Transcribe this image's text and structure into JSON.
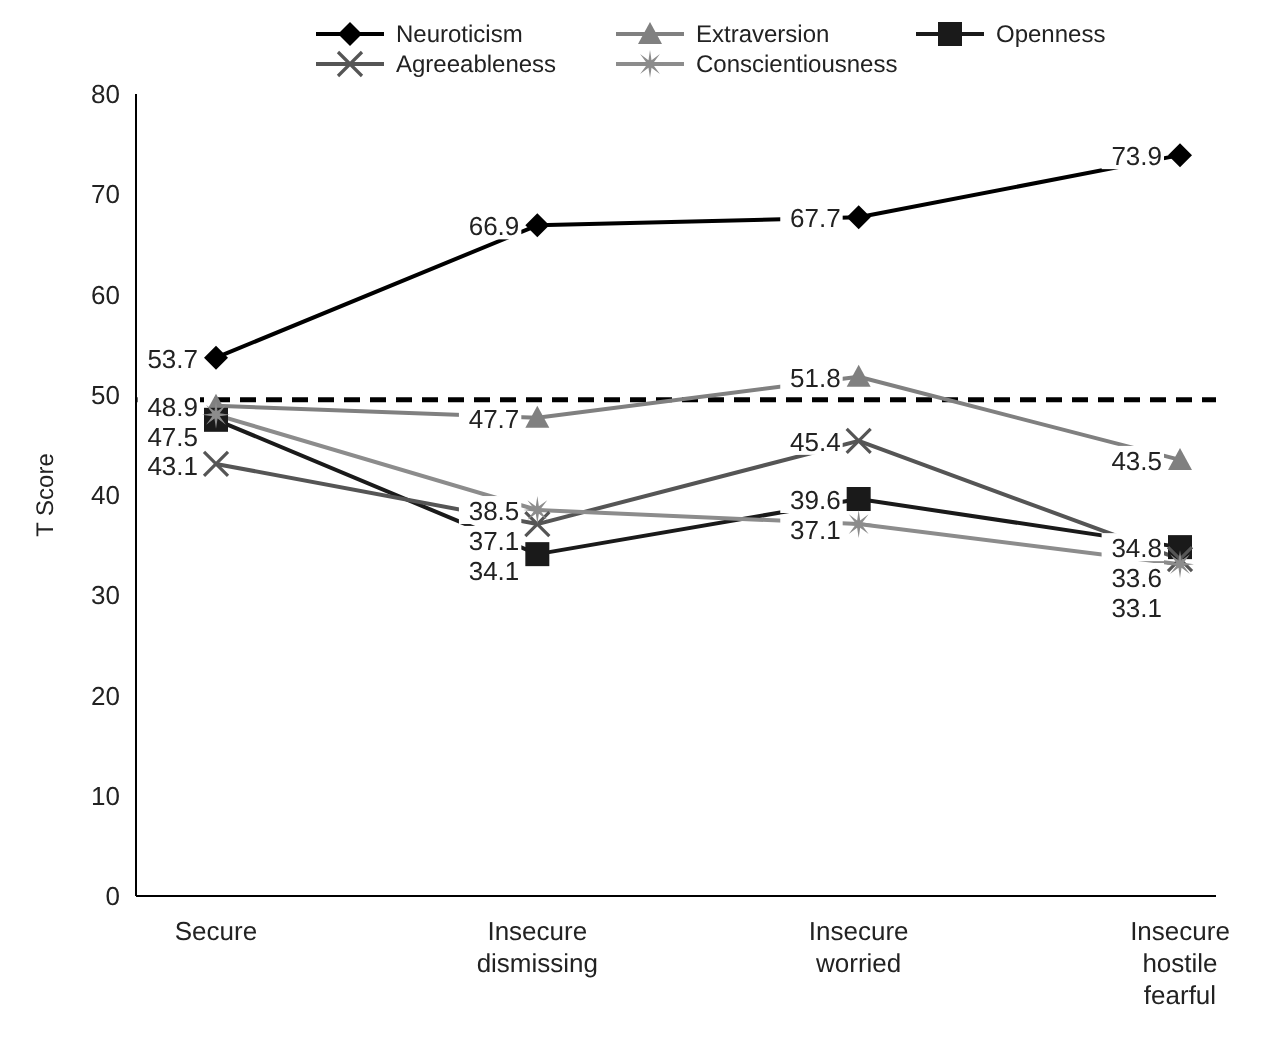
{
  "chart_data": {
    "type": "line",
    "ylabel": "T Score",
    "categories": [
      "Secure",
      "Insecure dismissing",
      "Insecure worried",
      "Insecure hostile fearful"
    ],
    "series": [
      {
        "name": "Neuroticism",
        "color": "#000000",
        "marker": "diamond",
        "values": [
          53.7,
          66.9,
          67.7,
          73.9
        ],
        "value_labels": [
          "53.7",
          "66.9",
          "67.7",
          "73.9"
        ]
      },
      {
        "name": "Extraversion",
        "color": "#808080",
        "marker": "triangle",
        "values": [
          48.9,
          47.7,
          51.8,
          43.5
        ],
        "value_labels": [
          "48.9",
          "47.7",
          "51.8",
          "43.5"
        ]
      },
      {
        "name": "Openness",
        "color": "#1a1a1a",
        "marker": "square",
        "values": [
          47.5,
          34.1,
          39.6,
          34.8
        ],
        "value_labels": [
          "47.5",
          "34.1",
          "39.6",
          "34.8"
        ]
      },
      {
        "name": "Agreeableness",
        "color": "#555555",
        "marker": "cross",
        "values": [
          43.1,
          37.1,
          45.4,
          33.6
        ],
        "value_labels": [
          "43.1",
          "37.1",
          "45.4",
          "33.6"
        ]
      },
      {
        "name": "Conscientiousness",
        "color": "#8c8c8c",
        "marker": "star",
        "values": [
          48,
          38.5,
          37.1,
          33.1
        ],
        "value_labels": [
          null,
          "38.5",
          "37.1",
          "33.1"
        ]
      }
    ],
    "ylim": [
      0,
      80
    ],
    "yticks": [
      0,
      10,
      20,
      30,
      40,
      50,
      60,
      70,
      80
    ],
    "grid": false,
    "legend": "top",
    "ref_lines": [
      {
        "axis": "y",
        "value": 49.5,
        "color": "#000000",
        "line_style": "dashed"
      }
    ]
  }
}
